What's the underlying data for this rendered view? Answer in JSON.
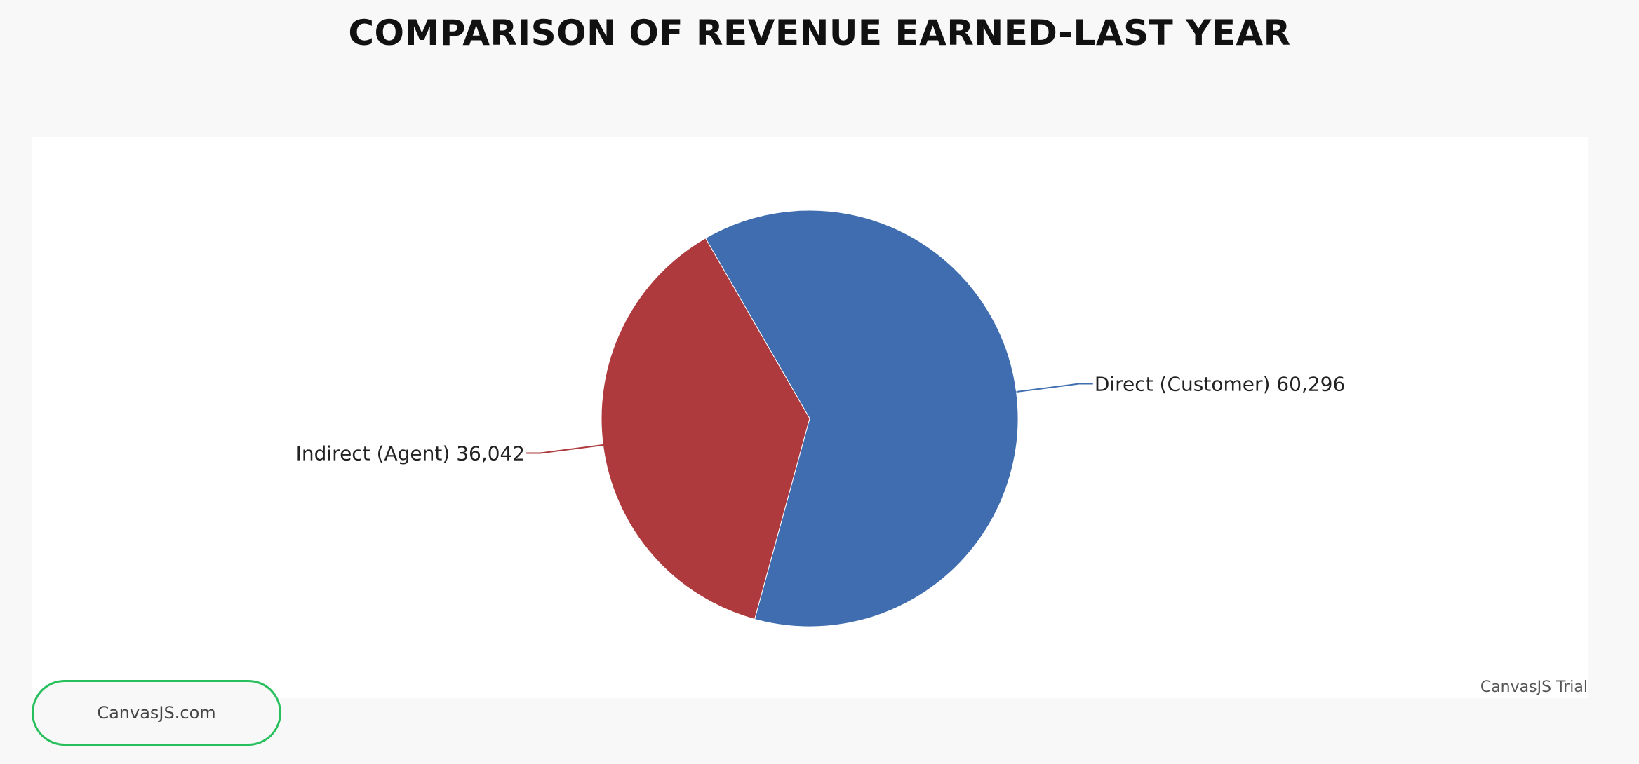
{
  "chart_data": {
    "type": "pie",
    "title": "COMPARISON OF REVENUE EARNED-LAST YEAR",
    "slices": [
      {
        "label": "Direct (Customer)",
        "value": 60296,
        "value_text": "60,296",
        "color": "#3f6daf"
      },
      {
        "label": "Indirect (Agent)",
        "value": 36042,
        "value_text": "36,042",
        "color": "#ae3a3d"
      }
    ],
    "start_angle_deg": -120,
    "legend": "none"
  },
  "credit": "CanvasJS Trial",
  "site_button": "CanvasJS.com"
}
